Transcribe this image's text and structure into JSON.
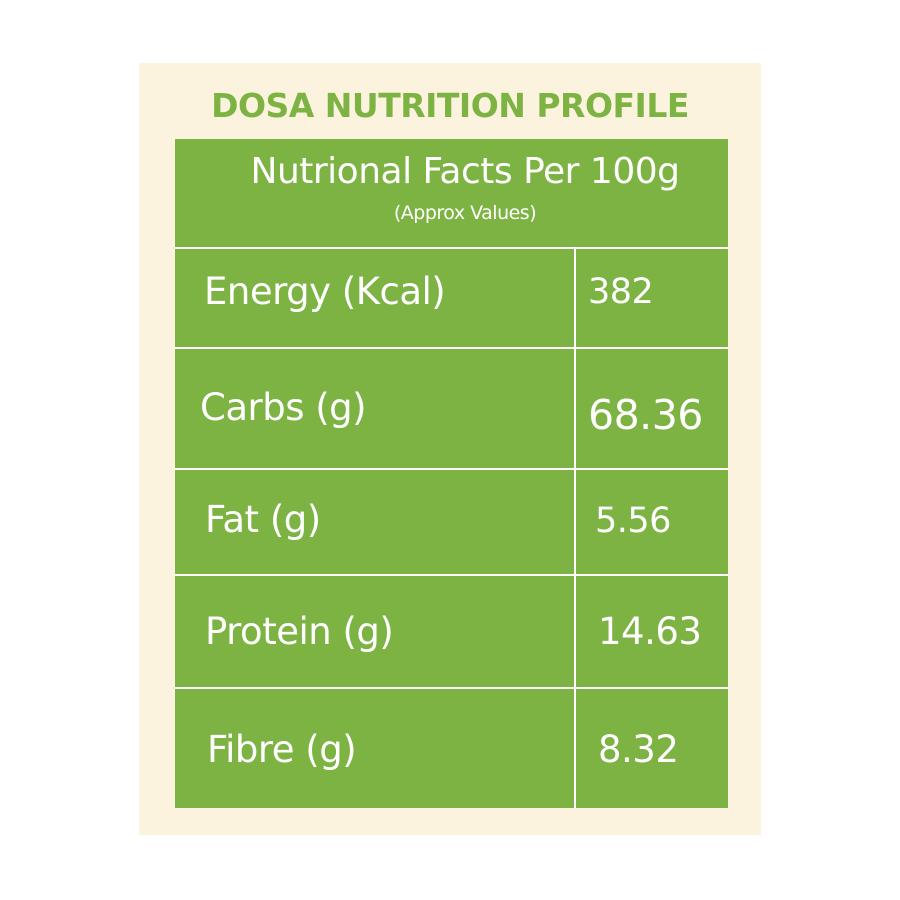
{
  "title": "DOSA NUTRITION PROFILE",
  "table": {
    "header": "Nutrional Facts Per 100g",
    "subheader": "(Approx Values)",
    "rows": [
      {
        "label": "Energy (Kcal)",
        "value": "382"
      },
      {
        "label": "Carbs (g)",
        "value": "68.36"
      },
      {
        "label": "Fat (g)",
        "value": "5.56"
      },
      {
        "label": "Protein (g)",
        "value": "14.63"
      },
      {
        "label": "Fibre (g)",
        "value": "8.32"
      }
    ]
  },
  "colors": {
    "background": "#fcf3df",
    "accent": "#7cb342",
    "text_on_accent": "#ffffff"
  }
}
